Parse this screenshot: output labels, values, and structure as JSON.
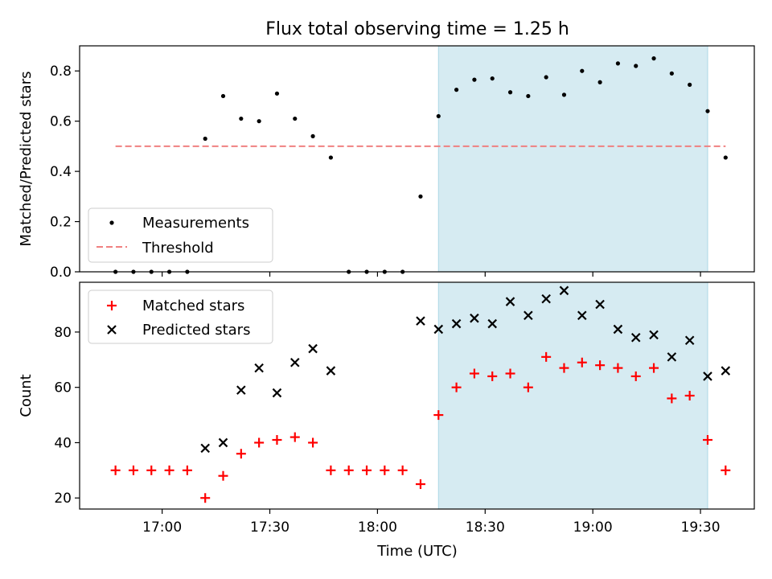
{
  "chart_data": {
    "title": "Flux total observing time = 1.25 h",
    "xlabel": "Time (UTC)",
    "xticks": [
      "17:00",
      "17:30",
      "18:00",
      "18:30",
      "19:00",
      "19:30"
    ],
    "colors": {
      "measurements": "#000000",
      "threshold": "#f08080",
      "matched": "#ff0000",
      "predicted": "#000000",
      "shade": "#add8e6"
    },
    "shaded_interval": [
      "18:17",
      "19:32"
    ],
    "panels": [
      {
        "type": "scatter",
        "ylabel": "Matched/Predicted stars",
        "ylim": [
          0,
          0.9
        ],
        "yticks": [
          0.0,
          0.2,
          0.4,
          0.6,
          0.8
        ],
        "ytick_labels": [
          "0.0",
          "0.2",
          "0.4",
          "0.6",
          "0.8"
        ],
        "legend_position": "lower-left",
        "series": [
          {
            "name": "Measurements",
            "marker": "dot",
            "x": [
              "16:47",
              "16:52",
              "16:57",
              "17:02",
              "17:07",
              "17:12",
              "17:17",
              "17:22",
              "17:27",
              "17:32",
              "17:37",
              "17:42",
              "17:47",
              "17:52",
              "17:57",
              "18:02",
              "18:07",
              "18:12",
              "18:17",
              "18:22",
              "18:27",
              "18:32",
              "18:37",
              "18:42",
              "18:47",
              "18:52",
              "18:57",
              "19:02",
              "19:07",
              "19:12",
              "19:17",
              "19:22",
              "19:27",
              "19:32",
              "19:37"
            ],
            "y": [
              0,
              0,
              0,
              0,
              0,
              0.53,
              0.7,
              0.61,
              0.6,
              0.71,
              0.61,
              0.54,
              0.455,
              0,
              0,
              0,
              0,
              0.3,
              0.62,
              0.725,
              0.765,
              0.77,
              0.715,
              0.7,
              0.775,
              0.705,
              0.8,
              0.755,
              0.83,
              0.82,
              0.85,
              0.79,
              0.745,
              0.64,
              0.455
            ]
          },
          {
            "name": "Threshold",
            "style": "dashed-line",
            "x": [
              "16:47",
              "19:37"
            ],
            "y": [
              0.5,
              0.5
            ]
          }
        ]
      },
      {
        "type": "scatter",
        "ylabel": "Count",
        "ylim": [
          16,
          98
        ],
        "yticks": [
          20,
          40,
          60,
          80
        ],
        "ytick_labels": [
          "20",
          "40",
          "60",
          "80"
        ],
        "legend_position": "upper-left",
        "series": [
          {
            "name": "Matched stars",
            "marker": "plus",
            "x": [
              "16:47",
              "16:52",
              "16:57",
              "17:02",
              "17:07",
              "17:12",
              "17:17",
              "17:22",
              "17:27",
              "17:32",
              "17:37",
              "17:42",
              "17:47",
              "17:52",
              "17:57",
              "18:02",
              "18:07",
              "18:12",
              "18:17",
              "18:22",
              "18:27",
              "18:32",
              "18:37",
              "18:42",
              "18:47",
              "18:52",
              "18:57",
              "19:02",
              "19:07",
              "19:12",
              "19:17",
              "19:22",
              "19:27",
              "19:32",
              "19:37"
            ],
            "y": [
              30,
              30,
              30,
              30,
              30,
              20,
              28,
              36,
              40,
              41,
              42,
              40,
              30,
              30,
              30,
              30,
              30,
              25,
              50,
              60,
              65,
              64,
              65,
              60,
              71,
              67,
              69,
              68,
              67,
              64,
              67,
              56,
              57,
              41,
              30
            ]
          },
          {
            "name": "Predicted stars",
            "marker": "x",
            "x": [
              "17:12",
              "17:17",
              "17:22",
              "17:27",
              "17:32",
              "17:37",
              "17:42",
              "17:47",
              "18:12",
              "18:17",
              "18:22",
              "18:27",
              "18:32",
              "18:37",
              "18:42",
              "18:47",
              "18:52",
              "18:57",
              "19:02",
              "19:07",
              "19:12",
              "19:17",
              "19:22",
              "19:27",
              "19:32",
              "19:37"
            ],
            "y": [
              38,
              40,
              59,
              67,
              58,
              69,
              74,
              66,
              84,
              81,
              83,
              85,
              83,
              91,
              86,
              92,
              95,
              86,
              90,
              81,
              78,
              79,
              71,
              77,
              64,
              66
            ]
          }
        ]
      }
    ]
  }
}
